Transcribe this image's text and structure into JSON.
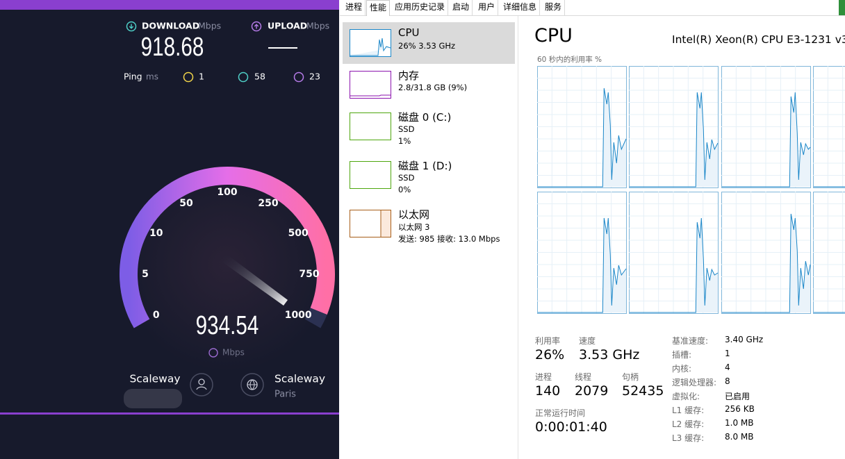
{
  "speedtest": {
    "download": {
      "label": "DOWNLOAD",
      "unit": "Mbps",
      "value": "918.68"
    },
    "upload": {
      "label": "UPLOAD",
      "unit": "Mbps"
    },
    "ping": {
      "label": "Ping",
      "unit": "ms",
      "jitter": "1",
      "download": "58",
      "upload": "23"
    },
    "gauge": {
      "ticks": [
        "0",
        "5",
        "10",
        "50",
        "100",
        "250",
        "500",
        "750",
        "1000"
      ],
      "value": "934.54",
      "unit": "Mbps"
    },
    "server": {
      "host": "Scaleway",
      "isp": "Scaleway",
      "location": "Paris"
    }
  },
  "task_manager": {
    "tabs": [
      "进程",
      "性能",
      "应用历史记录",
      "启动",
      "用户",
      "详细信息",
      "服务"
    ],
    "sidebar": [
      {
        "title": "CPU",
        "lines": [
          "26% 3.53 GHz"
        ]
      },
      {
        "title": "内存",
        "lines": [
          "2.8/31.8 GB (9%)"
        ]
      },
      {
        "title": "磁盘 0 (C:)",
        "lines": [
          "SSD",
          "1%"
        ]
      },
      {
        "title": "磁盘 1 (D:)",
        "lines": [
          "SSD",
          "0%"
        ]
      },
      {
        "title": "以太网",
        "lines": [
          "以太网 3",
          "发送: 985 接收: 13.0 Mbps"
        ]
      }
    ],
    "header": {
      "title": "CPU",
      "model": "Intel(R) Xeon(R) CPU E3-1231 v3",
      "graph_caption": "60 秒内的利用率 %"
    },
    "stats": [
      {
        "label": "利用率",
        "value": "26%"
      },
      {
        "label": "速度",
        "value": "3.53 GHz"
      },
      {
        "label": "进程",
        "value": "140"
      },
      {
        "label": "线程",
        "value": "2079"
      },
      {
        "label": "句柄",
        "value": "52435"
      },
      {
        "label": "正常运行时间",
        "value": "0:00:01:40"
      }
    ],
    "details": [
      {
        "label": "基准速度:",
        "value": "3.40 GHz"
      },
      {
        "label": "插槽:",
        "value": "1"
      },
      {
        "label": "内核:",
        "value": "4"
      },
      {
        "label": "逻辑处理器:",
        "value": "8"
      },
      {
        "label": "虚拟化:",
        "value": "已启用"
      },
      {
        "label": "L1 缓存:",
        "value": "256 KB"
      },
      {
        "label": "L2 缓存:",
        "value": "1.0 MB"
      },
      {
        "label": "L3 缓存:",
        "value": "8.0 MB"
      }
    ]
  }
}
